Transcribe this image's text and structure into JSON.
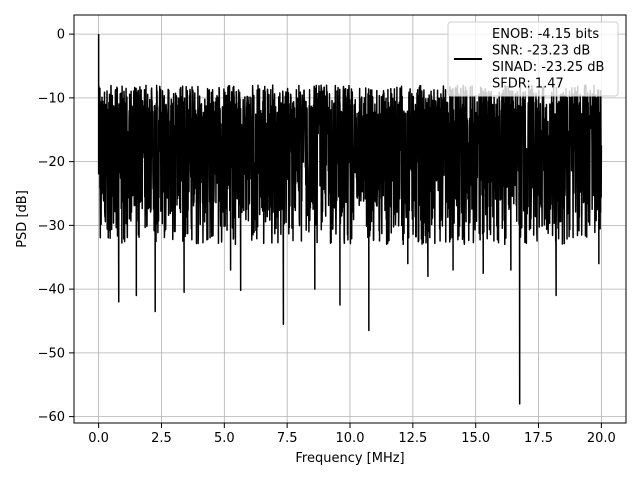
{
  "chart_data": {
    "type": "line",
    "title": "",
    "xlabel": "Frequency [MHz]",
    "ylabel": "PSD [dB]",
    "xlim": [
      -0.98,
      20.98
    ],
    "ylim": [
      -61,
      3
    ],
    "xticks": [
      0.0,
      2.5,
      5.0,
      7.5,
      10.0,
      12.5,
      15.0,
      17.5,
      20.0
    ],
    "xtick_labels": [
      "0.0",
      "2.5",
      "5.0",
      "7.5",
      "10.0",
      "12.5",
      "15.0",
      "17.5",
      "20.0"
    ],
    "yticks": [
      0,
      -10,
      -20,
      -30,
      -40,
      -50,
      -60
    ],
    "ytick_labels": [
      "0",
      "−10",
      "−20",
      "−30",
      "−40",
      "−50",
      "−60"
    ],
    "grid": true,
    "legend_position": "top-right",
    "legend_entries": [
      "ENOB: -4.15 bits",
      "SNR: -23.23 dB",
      "SINAD: -23.25 dB",
      "SFDR: 1.47"
    ],
    "series": [
      {
        "color": "#000000",
        "x_range": [
          0.0,
          20.0
        ],
        "typical_band": [
          -28,
          -8
        ],
        "peaks": [
          {
            "x": 0.0,
            "y": 0.0
          },
          {
            "x": 0.05,
            "y": -8.5
          },
          {
            "x": 0.15,
            "y": -25.0
          },
          {
            "x": 0.8,
            "y": -42.0
          },
          {
            "x": 1.5,
            "y": -41.0
          },
          {
            "x": 2.25,
            "y": -43.5
          },
          {
            "x": 3.4,
            "y": -40.5
          },
          {
            "x": 5.25,
            "y": -37.0
          },
          {
            "x": 5.65,
            "y": -40.2
          },
          {
            "x": 7.35,
            "y": -45.5
          },
          {
            "x": 8.6,
            "y": -40.0
          },
          {
            "x": 9.6,
            "y": -42.5
          },
          {
            "x": 10.75,
            "y": -46.5
          },
          {
            "x": 12.3,
            "y": -36.0
          },
          {
            "x": 13.1,
            "y": -38.0
          },
          {
            "x": 14.1,
            "y": -37.0
          },
          {
            "x": 15.3,
            "y": -37.5
          },
          {
            "x": 16.4,
            "y": -37.0
          },
          {
            "x": 16.75,
            "y": -58.0
          },
          {
            "x": 18.2,
            "y": -41.0
          },
          {
            "x": 19.9,
            "y": -36.0
          }
        ]
      }
    ]
  }
}
